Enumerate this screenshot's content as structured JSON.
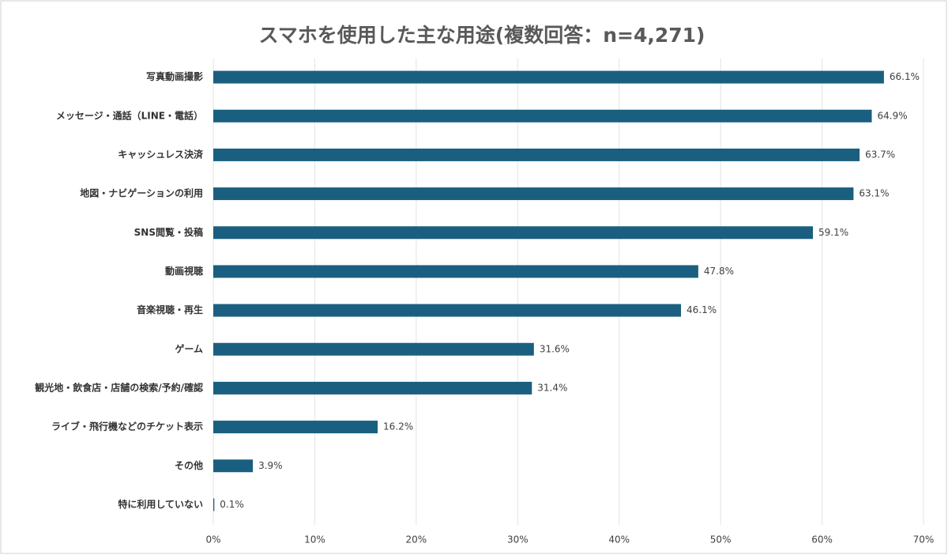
{
  "chart_data": {
    "type": "bar",
    "orientation": "horizontal",
    "title": "スマホを使用した主な用途(複数回答：n=4,271)",
    "categories": [
      "写真動画撮影",
      "メッセージ・通話（LINE・電話）",
      "キャッシュレス決済",
      "地図・ナビゲーションの利用",
      "SNS閲覧・投稿",
      "動画視聴",
      "音楽視聴・再生",
      "ゲーム",
      "観光地・飲食店・店舗の検索/予約/確認",
      "ライブ・飛行機などのチケット表示",
      "その他",
      "特に利用していない"
    ],
    "values": [
      66.1,
      64.9,
      63.7,
      63.1,
      59.1,
      47.8,
      46.1,
      31.6,
      31.4,
      16.2,
      3.9,
      0.1
    ],
    "value_labels": [
      "66.1%",
      "64.9%",
      "63.7%",
      "63.1%",
      "59.1%",
      "47.8%",
      "46.1%",
      "31.6%",
      "31.4%",
      "16.2%",
      "3.9%",
      "0.1%"
    ],
    "color": "#1b5f80",
    "xlim": [
      0,
      70
    ],
    "xticks": [
      {
        "value": 0,
        "label": "0%"
      },
      {
        "value": 10,
        "label": "10%"
      },
      {
        "value": 20,
        "label": "20%"
      },
      {
        "value": 30,
        "label": "30%"
      },
      {
        "value": 40,
        "label": "40%"
      },
      {
        "value": 50,
        "label": "50%"
      },
      {
        "value": 60,
        "label": "60%"
      },
      {
        "value": 70,
        "label": "70%"
      }
    ],
    "grid": true
  }
}
